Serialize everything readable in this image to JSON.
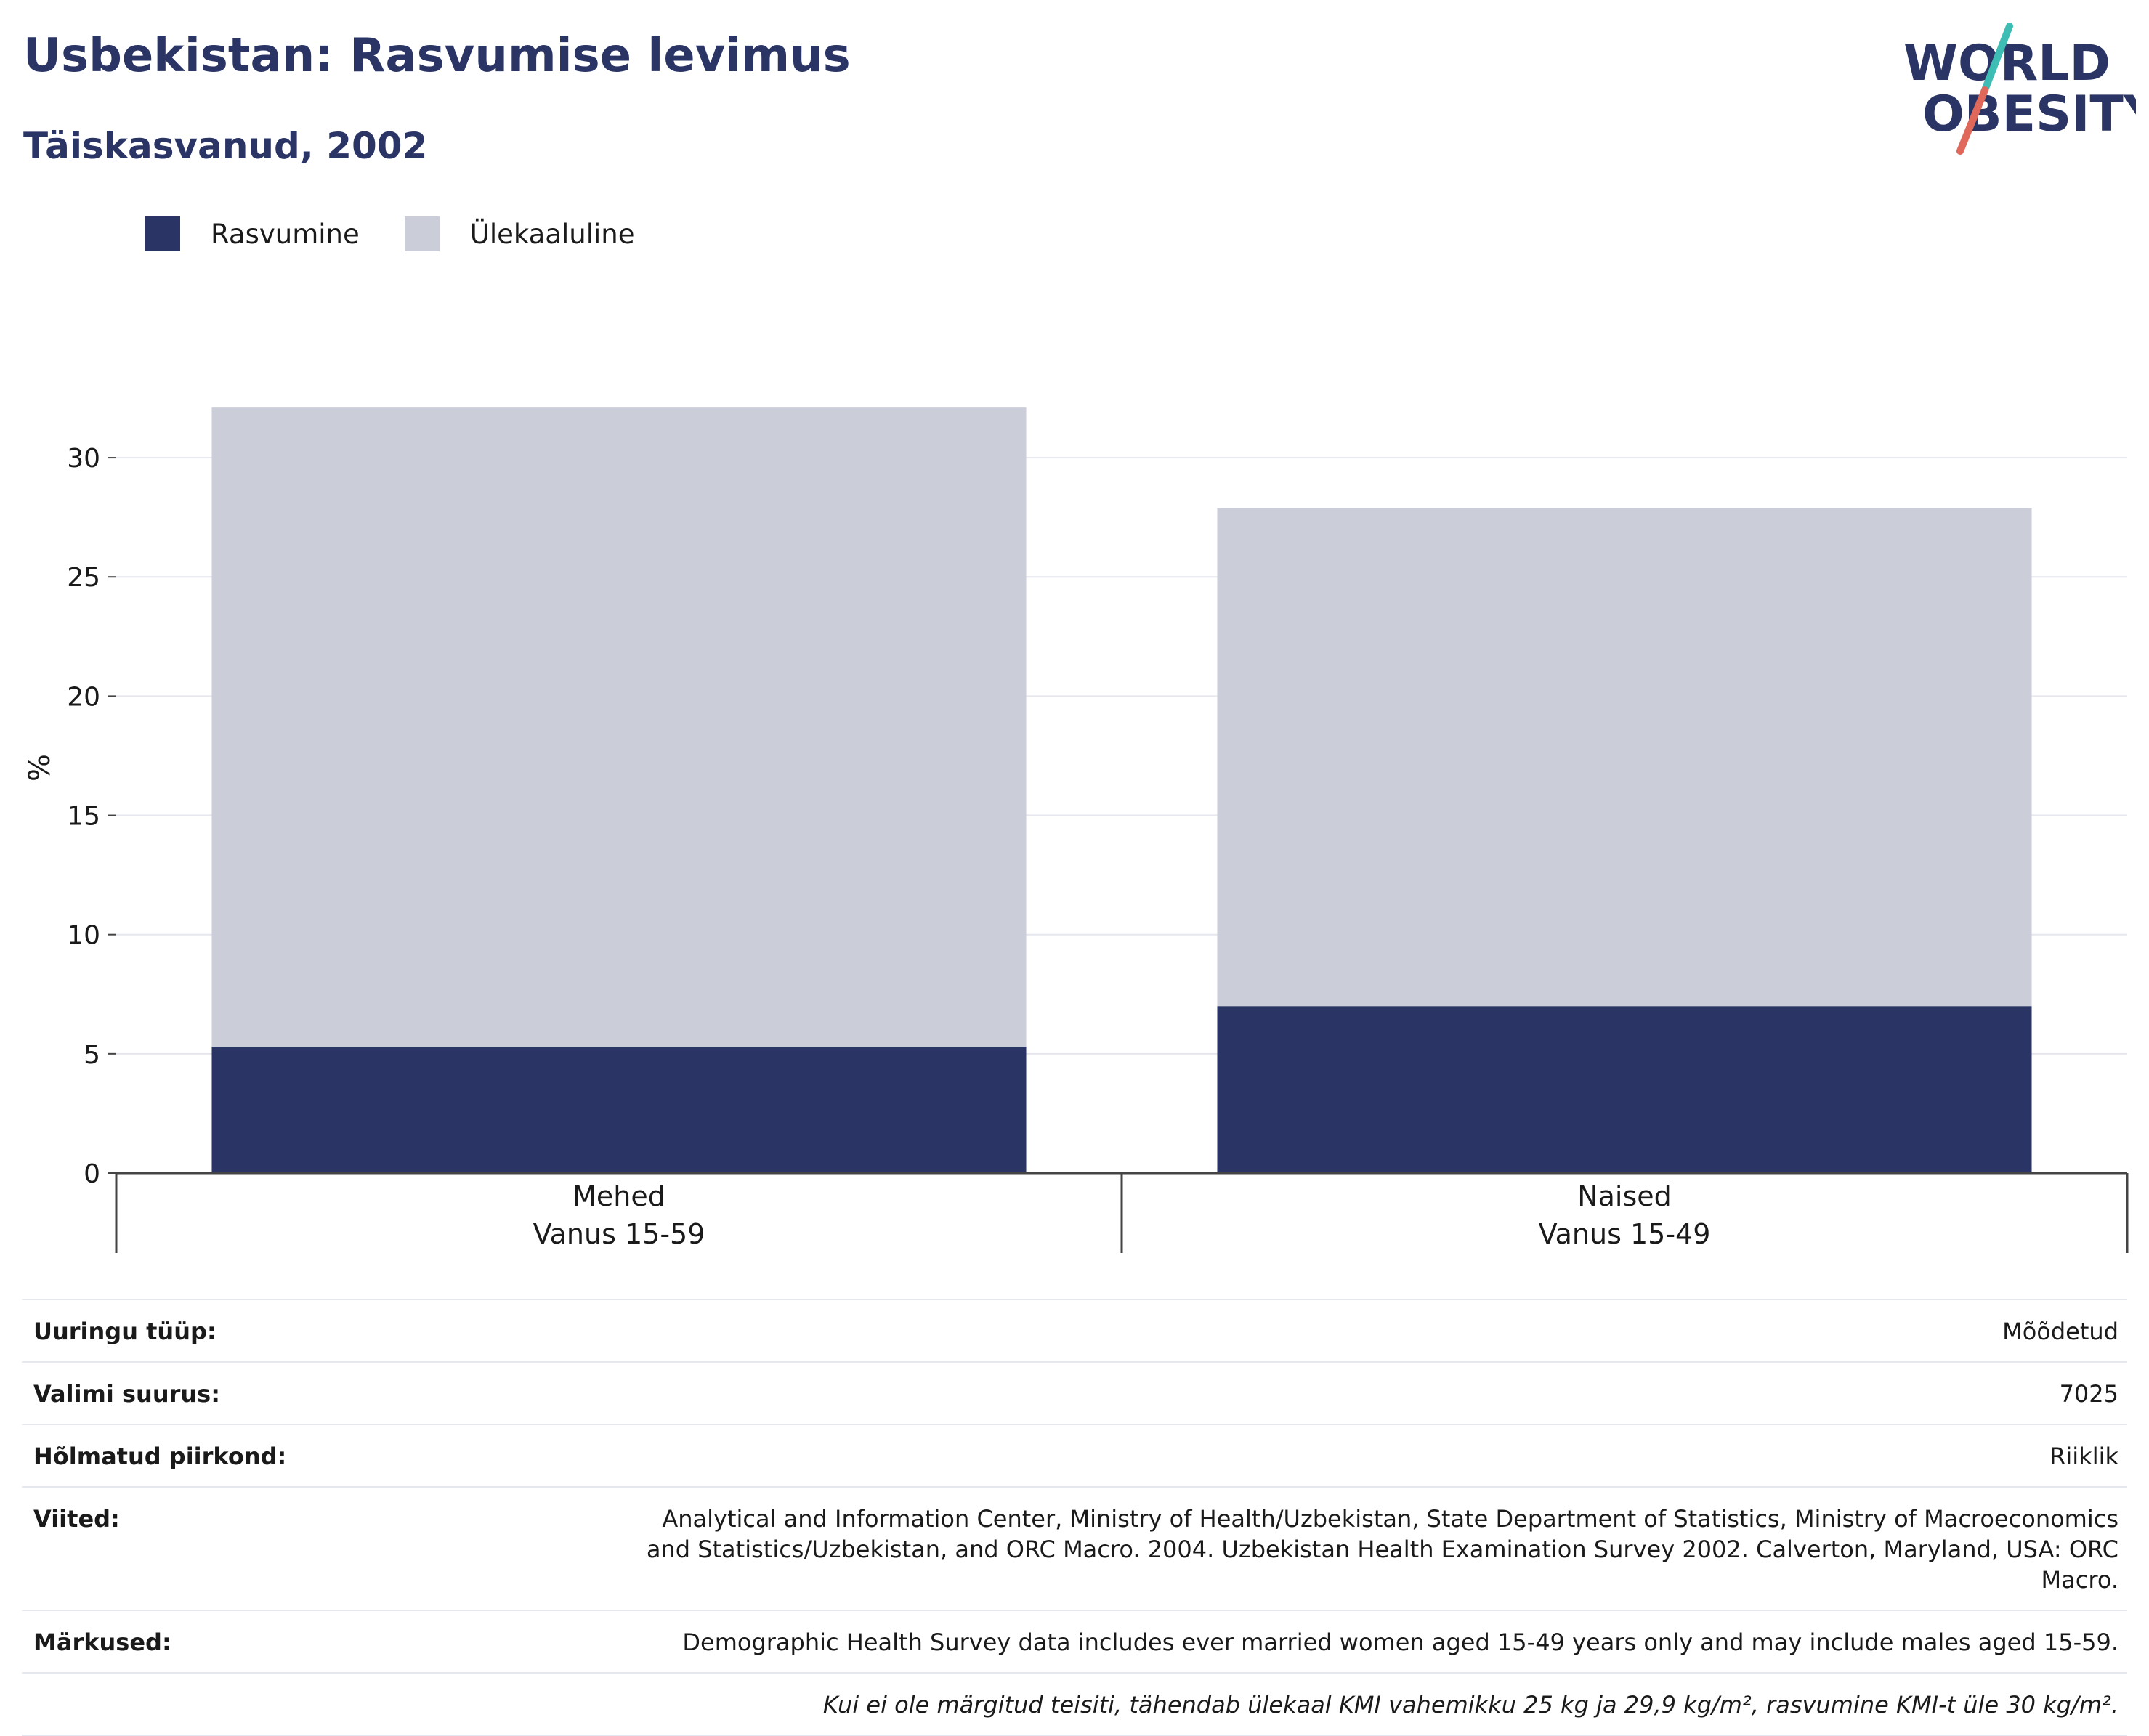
{
  "header": {
    "title": "Usbekistan: Rasvumise levimus",
    "subtitle": "Täiskasvanud, 2002"
  },
  "logo": {
    "line1": "WORLD",
    "line2": "OBESITY",
    "colors": {
      "text": "#2a3565",
      "slash_top": "#3dbdb3",
      "slash_bottom": "#e0685a"
    }
  },
  "legend": [
    {
      "label": "Rasvumine",
      "color": "#2a3565"
    },
    {
      "label": "Ülekaaluline",
      "color": "#cbcdd9"
    }
  ],
  "chart_data": {
    "type": "bar",
    "stacked": true,
    "ylabel": "%",
    "ylim": [
      0,
      32.5
    ],
    "yticks": [
      0,
      5,
      10,
      15,
      20,
      25,
      30
    ],
    "grid": true,
    "legend_position": "top-left",
    "categories": [
      {
        "name": "Mehed",
        "sub": "Vanus 15-59"
      },
      {
        "name": "Naised",
        "sub": "Vanus 15-49"
      }
    ],
    "series": [
      {
        "name": "Rasvumine",
        "color": "#2a3565",
        "values": [
          5.3,
          7.0
        ]
      },
      {
        "name": "Ülekaaluline",
        "color": "#cbcdd9",
        "values": [
          26.8,
          20.9
        ]
      }
    ]
  },
  "meta": {
    "rows": [
      {
        "label": "Uuringu tüüp:",
        "value": "Mõõdetud"
      },
      {
        "label": "Valimi suurus:",
        "value": "7025"
      },
      {
        "label": "Hõlmatud piirkond:",
        "value": "Riiklik"
      },
      {
        "label": "Viited:",
        "value": "Analytical and Information Center, Ministry of Health/Uzbekistan, State Department of Statistics, Ministry of Macroeconomics and Statistics/Uzbekistan, and ORC Macro. 2004. Uzbekistan Health Examination Survey 2002. Calverton, Maryland, USA: ORC Macro."
      },
      {
        "label": "Märkused:",
        "value": "Demographic Health Survey data includes ever married women aged 15-49 years only and may include males aged 15-59."
      }
    ],
    "note": "Kui ei ole märgitud teisiti, tähendab ülekaal KMI vahemikku 25 kg ja 29,9 kg/m², rasvumine KMI-t üle 30 kg/m²."
  }
}
